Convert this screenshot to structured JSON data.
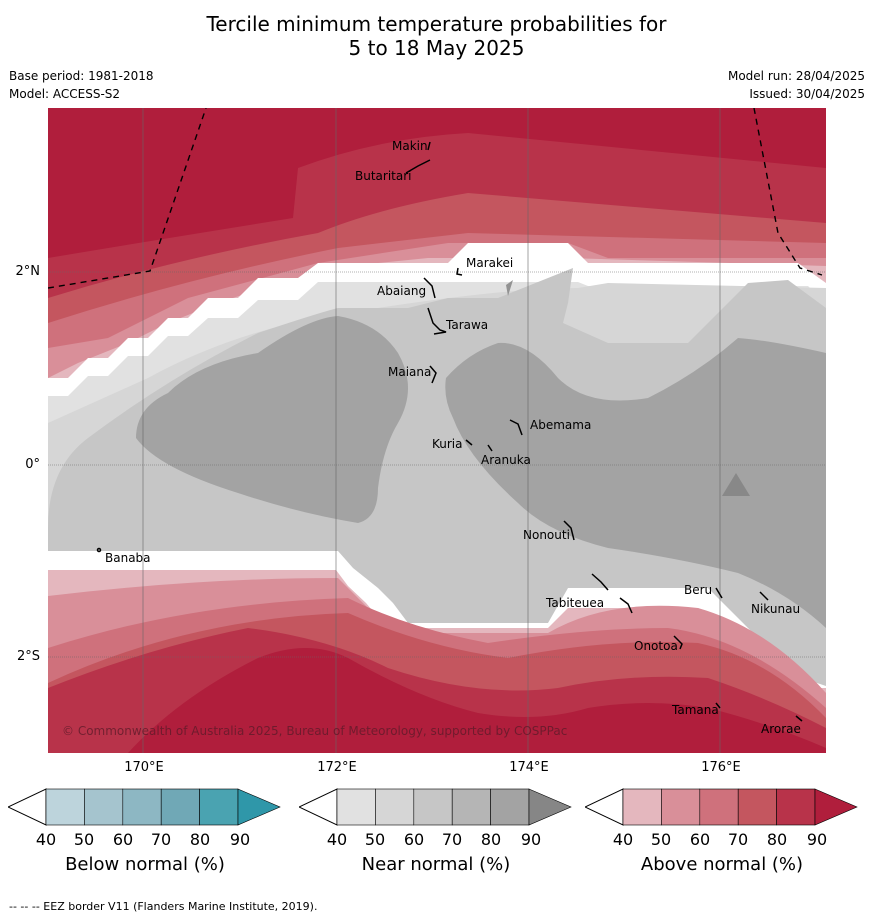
{
  "title_line1": "Tercile minimum temperature probabilities for",
  "title_line2": "5 to 18 May 2025",
  "base_period": "Base period: 1981-2018",
  "model": "Model: ACCESS-S2",
  "model_run": "Model run: 28/04/2025",
  "issued": "Issued: 30/04/2025",
  "lat_labels": [
    "2°N",
    "0°",
    "2°S"
  ],
  "lon_labels": [
    "170°E",
    "172°E",
    "174°E",
    "176°E"
  ],
  "places": [
    "Makin",
    "Butaritari",
    "Marakei",
    "Abaiang",
    "Tarawa",
    "Maiana",
    "Abemama",
    "Kuria",
    "Aranuka",
    "Nonouti",
    "Banaba",
    "Tabiteuea",
    "Beru",
    "Nikunau",
    "Onotoa",
    "Tamana",
    "Arorae"
  ],
  "copyright": "© Commonwealth of Australia 2025, Bureau of Meteorology, supported by COSPPac",
  "colorbars": [
    {
      "label": "Below normal (%)",
      "ticks": [
        "40",
        "50",
        "60",
        "70",
        "80",
        "90"
      ],
      "colors": [
        "#bdd4dc",
        "#a5c4ce",
        "#8db7c3",
        "#70a8b6",
        "#4aa3b1",
        "#2f97a9"
      ]
    },
    {
      "label": "Near normal (%)",
      "ticks": [
        "40",
        "50",
        "60",
        "70",
        "80",
        "90"
      ],
      "colors": [
        "#e1e1e1",
        "#d6d6d6",
        "#c6c6c6",
        "#b5b5b5",
        "#a3a3a3",
        "#868686"
      ]
    },
    {
      "label": "Above normal (%)",
      "ticks": [
        "40",
        "50",
        "60",
        "70",
        "80",
        "90"
      ],
      "colors": [
        "#e4b7be",
        "#d98f99",
        "#cf717c",
        "#c4565f",
        "#b8334a",
        "#b01e3c"
      ]
    }
  ],
  "footnote": "-- -- -- EEZ border V11 (Flanders Marine Institute, 2019)."
}
